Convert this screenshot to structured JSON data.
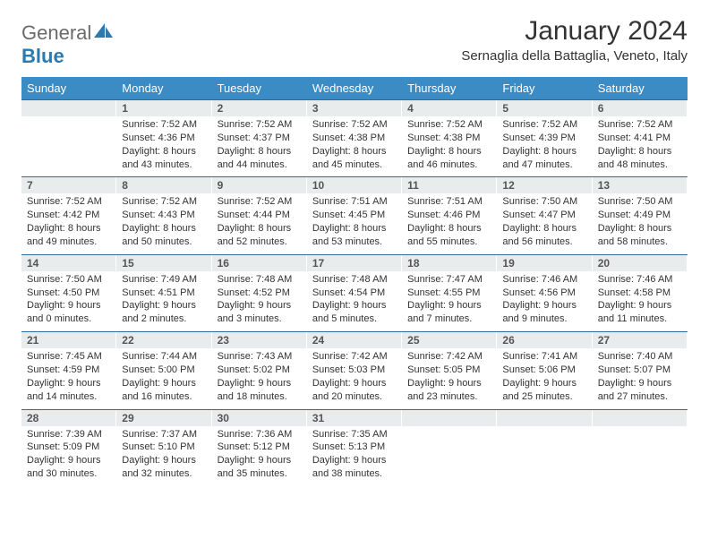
{
  "logo": {
    "text_gray": "General",
    "text_blue": "Blue"
  },
  "title": "January 2024",
  "location": "Sernaglia della Battaglia, Veneto, Italy",
  "day_headers": [
    "Sunday",
    "Monday",
    "Tuesday",
    "Wednesday",
    "Thursday",
    "Friday",
    "Saturday"
  ],
  "colors": {
    "header_blue": "#3b8bc4",
    "daynum_bg": "#e9eced",
    "divider": "#2a6ea0",
    "text": "#333333",
    "logo_gray": "#6b6b6b",
    "logo_blue": "#2a7ab0"
  },
  "weeks": [
    [
      {
        "n": "",
        "l1": "",
        "l2": "",
        "l3": "",
        "l4": ""
      },
      {
        "n": "1",
        "l1": "Sunrise: 7:52 AM",
        "l2": "Sunset: 4:36 PM",
        "l3": "Daylight: 8 hours",
        "l4": "and 43 minutes."
      },
      {
        "n": "2",
        "l1": "Sunrise: 7:52 AM",
        "l2": "Sunset: 4:37 PM",
        "l3": "Daylight: 8 hours",
        "l4": "and 44 minutes."
      },
      {
        "n": "3",
        "l1": "Sunrise: 7:52 AM",
        "l2": "Sunset: 4:38 PM",
        "l3": "Daylight: 8 hours",
        "l4": "and 45 minutes."
      },
      {
        "n": "4",
        "l1": "Sunrise: 7:52 AM",
        "l2": "Sunset: 4:38 PM",
        "l3": "Daylight: 8 hours",
        "l4": "and 46 minutes."
      },
      {
        "n": "5",
        "l1": "Sunrise: 7:52 AM",
        "l2": "Sunset: 4:39 PM",
        "l3": "Daylight: 8 hours",
        "l4": "and 47 minutes."
      },
      {
        "n": "6",
        "l1": "Sunrise: 7:52 AM",
        "l2": "Sunset: 4:41 PM",
        "l3": "Daylight: 8 hours",
        "l4": "and 48 minutes."
      }
    ],
    [
      {
        "n": "7",
        "l1": "Sunrise: 7:52 AM",
        "l2": "Sunset: 4:42 PM",
        "l3": "Daylight: 8 hours",
        "l4": "and 49 minutes."
      },
      {
        "n": "8",
        "l1": "Sunrise: 7:52 AM",
        "l2": "Sunset: 4:43 PM",
        "l3": "Daylight: 8 hours",
        "l4": "and 50 minutes."
      },
      {
        "n": "9",
        "l1": "Sunrise: 7:52 AM",
        "l2": "Sunset: 4:44 PM",
        "l3": "Daylight: 8 hours",
        "l4": "and 52 minutes."
      },
      {
        "n": "10",
        "l1": "Sunrise: 7:51 AM",
        "l2": "Sunset: 4:45 PM",
        "l3": "Daylight: 8 hours",
        "l4": "and 53 minutes."
      },
      {
        "n": "11",
        "l1": "Sunrise: 7:51 AM",
        "l2": "Sunset: 4:46 PM",
        "l3": "Daylight: 8 hours",
        "l4": "and 55 minutes."
      },
      {
        "n": "12",
        "l1": "Sunrise: 7:50 AM",
        "l2": "Sunset: 4:47 PM",
        "l3": "Daylight: 8 hours",
        "l4": "and 56 minutes."
      },
      {
        "n": "13",
        "l1": "Sunrise: 7:50 AM",
        "l2": "Sunset: 4:49 PM",
        "l3": "Daylight: 8 hours",
        "l4": "and 58 minutes."
      }
    ],
    [
      {
        "n": "14",
        "l1": "Sunrise: 7:50 AM",
        "l2": "Sunset: 4:50 PM",
        "l3": "Daylight: 9 hours",
        "l4": "and 0 minutes."
      },
      {
        "n": "15",
        "l1": "Sunrise: 7:49 AM",
        "l2": "Sunset: 4:51 PM",
        "l3": "Daylight: 9 hours",
        "l4": "and 2 minutes."
      },
      {
        "n": "16",
        "l1": "Sunrise: 7:48 AM",
        "l2": "Sunset: 4:52 PM",
        "l3": "Daylight: 9 hours",
        "l4": "and 3 minutes."
      },
      {
        "n": "17",
        "l1": "Sunrise: 7:48 AM",
        "l2": "Sunset: 4:54 PM",
        "l3": "Daylight: 9 hours",
        "l4": "and 5 minutes."
      },
      {
        "n": "18",
        "l1": "Sunrise: 7:47 AM",
        "l2": "Sunset: 4:55 PM",
        "l3": "Daylight: 9 hours",
        "l4": "and 7 minutes."
      },
      {
        "n": "19",
        "l1": "Sunrise: 7:46 AM",
        "l2": "Sunset: 4:56 PM",
        "l3": "Daylight: 9 hours",
        "l4": "and 9 minutes."
      },
      {
        "n": "20",
        "l1": "Sunrise: 7:46 AM",
        "l2": "Sunset: 4:58 PM",
        "l3": "Daylight: 9 hours",
        "l4": "and 11 minutes."
      }
    ],
    [
      {
        "n": "21",
        "l1": "Sunrise: 7:45 AM",
        "l2": "Sunset: 4:59 PM",
        "l3": "Daylight: 9 hours",
        "l4": "and 14 minutes."
      },
      {
        "n": "22",
        "l1": "Sunrise: 7:44 AM",
        "l2": "Sunset: 5:00 PM",
        "l3": "Daylight: 9 hours",
        "l4": "and 16 minutes."
      },
      {
        "n": "23",
        "l1": "Sunrise: 7:43 AM",
        "l2": "Sunset: 5:02 PM",
        "l3": "Daylight: 9 hours",
        "l4": "and 18 minutes."
      },
      {
        "n": "24",
        "l1": "Sunrise: 7:42 AM",
        "l2": "Sunset: 5:03 PM",
        "l3": "Daylight: 9 hours",
        "l4": "and 20 minutes."
      },
      {
        "n": "25",
        "l1": "Sunrise: 7:42 AM",
        "l2": "Sunset: 5:05 PM",
        "l3": "Daylight: 9 hours",
        "l4": "and 23 minutes."
      },
      {
        "n": "26",
        "l1": "Sunrise: 7:41 AM",
        "l2": "Sunset: 5:06 PM",
        "l3": "Daylight: 9 hours",
        "l4": "and 25 minutes."
      },
      {
        "n": "27",
        "l1": "Sunrise: 7:40 AM",
        "l2": "Sunset: 5:07 PM",
        "l3": "Daylight: 9 hours",
        "l4": "and 27 minutes."
      }
    ],
    [
      {
        "n": "28",
        "l1": "Sunrise: 7:39 AM",
        "l2": "Sunset: 5:09 PM",
        "l3": "Daylight: 9 hours",
        "l4": "and 30 minutes."
      },
      {
        "n": "29",
        "l1": "Sunrise: 7:37 AM",
        "l2": "Sunset: 5:10 PM",
        "l3": "Daylight: 9 hours",
        "l4": "and 32 minutes."
      },
      {
        "n": "30",
        "l1": "Sunrise: 7:36 AM",
        "l2": "Sunset: 5:12 PM",
        "l3": "Daylight: 9 hours",
        "l4": "and 35 minutes."
      },
      {
        "n": "31",
        "l1": "Sunrise: 7:35 AM",
        "l2": "Sunset: 5:13 PM",
        "l3": "Daylight: 9 hours",
        "l4": "and 38 minutes."
      },
      {
        "n": "",
        "l1": "",
        "l2": "",
        "l3": "",
        "l4": ""
      },
      {
        "n": "",
        "l1": "",
        "l2": "",
        "l3": "",
        "l4": ""
      },
      {
        "n": "",
        "l1": "",
        "l2": "",
        "l3": "",
        "l4": ""
      }
    ]
  ]
}
